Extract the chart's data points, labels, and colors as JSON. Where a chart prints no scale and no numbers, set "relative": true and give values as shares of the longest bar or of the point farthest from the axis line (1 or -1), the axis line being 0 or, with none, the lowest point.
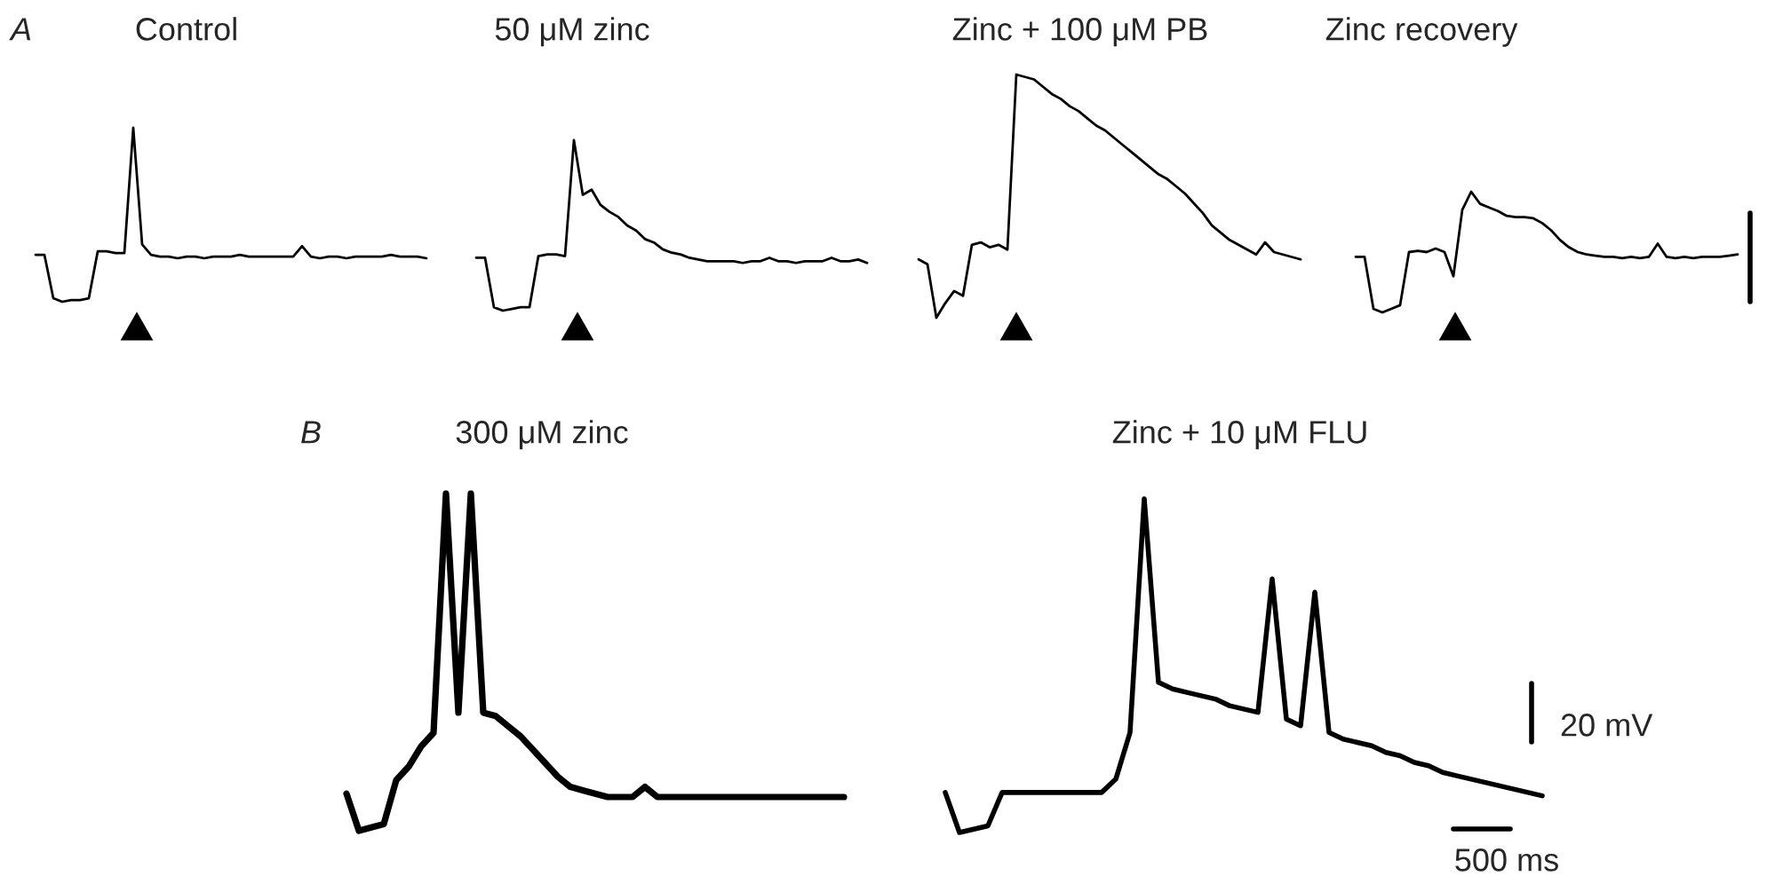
{
  "chart_data": [
    {
      "type": "line",
      "title": "Control",
      "relative": true,
      "color": "#000000",
      "annotations": [
        "A"
      ],
      "categories": [
        null,
        null,
        null,
        null,
        null,
        null,
        null,
        null,
        null,
        null,
        null,
        null,
        null,
        null,
        null,
        null,
        null,
        null,
        null,
        null,
        null,
        null,
        null,
        null,
        null,
        null,
        null,
        null,
        null,
        null,
        null,
        null,
        null,
        null,
        null,
        null,
        null,
        null,
        null,
        null,
        null,
        null,
        null,
        null,
        null
      ],
      "values": [
        0.27,
        0.27,
        0.02,
        0.0,
        0.01,
        0.01,
        0.02,
        0.29,
        0.29,
        0.28,
        0.28,
        1.0,
        0.33,
        0.27,
        0.26,
        0.26,
        0.25,
        0.26,
        0.26,
        0.25,
        0.26,
        0.26,
        0.26,
        0.27,
        0.26,
        0.26,
        0.26,
        0.26,
        0.26,
        0.26,
        0.32,
        0.26,
        0.25,
        0.26,
        0.26,
        0.25,
        0.26,
        0.26,
        0.26,
        0.26,
        0.27,
        0.26,
        0.26,
        0.26,
        0.25
      ]
    },
    {
      "type": "line",
      "title": "50 μM zinc",
      "relative": true,
      "color": "#000000",
      "categories": [
        null,
        null,
        null,
        null,
        null,
        null,
        null,
        null,
        null,
        null,
        null,
        null,
        null,
        null,
        null,
        null,
        null,
        null,
        null,
        null,
        null,
        null,
        null,
        null,
        null,
        null,
        null,
        null,
        null,
        null,
        null,
        null,
        null,
        null,
        null,
        null,
        null,
        null,
        null,
        null,
        null,
        null,
        null,
        null,
        null
      ],
      "values": [
        0.31,
        0.31,
        0.02,
        0.0,
        0.01,
        0.02,
        0.02,
        0.32,
        0.33,
        0.33,
        0.32,
        1.0,
        0.68,
        0.71,
        0.62,
        0.58,
        0.55,
        0.5,
        0.47,
        0.42,
        0.4,
        0.36,
        0.34,
        0.33,
        0.31,
        0.3,
        0.29,
        0.29,
        0.29,
        0.29,
        0.28,
        0.29,
        0.29,
        0.31,
        0.29,
        0.29,
        0.28,
        0.29,
        0.29,
        0.29,
        0.31,
        0.29,
        0.29,
        0.3,
        0.28
      ]
    },
    {
      "type": "line",
      "title": "Zinc + 100 μM PB",
      "relative": true,
      "color": "#000000",
      "categories": [
        null,
        null,
        null,
        null,
        null,
        null,
        null,
        null,
        null,
        null,
        null,
        null,
        null,
        null,
        null,
        null,
        null,
        null,
        null,
        null,
        null,
        null,
        null,
        null,
        null,
        null,
        null,
        null,
        null,
        null,
        null,
        null,
        null,
        null,
        null,
        null,
        null,
        null,
        null,
        null,
        null,
        null,
        null,
        null
      ],
      "values": [
        0.24,
        0.22,
        0.0,
        0.06,
        0.11,
        0.09,
        0.3,
        0.31,
        0.29,
        0.3,
        0.28,
        1.0,
        0.99,
        0.98,
        0.95,
        0.92,
        0.9,
        0.87,
        0.85,
        0.82,
        0.79,
        0.77,
        0.74,
        0.71,
        0.68,
        0.65,
        0.62,
        0.59,
        0.57,
        0.54,
        0.51,
        0.47,
        0.43,
        0.38,
        0.35,
        0.32,
        0.3,
        0.28,
        0.26,
        0.31,
        0.27,
        0.26,
        0.25,
        0.24
      ]
    },
    {
      "type": "line",
      "title": "Zinc recovery",
      "relative": true,
      "color": "#000000",
      "categories": [
        null,
        null,
        null,
        null,
        null,
        null,
        null,
        null,
        null,
        null,
        null,
        null,
        null,
        null,
        null,
        null,
        null,
        null,
        null,
        null,
        null,
        null,
        null,
        null,
        null,
        null,
        null,
        null,
        null,
        null,
        null,
        null,
        null,
        null,
        null,
        null,
        null,
        null,
        null,
        null,
        null,
        null,
        null,
        null
      ],
      "values": [
        0.46,
        0.46,
        0.03,
        0.0,
        0.03,
        0.06,
        0.5,
        0.51,
        0.5,
        0.53,
        0.5,
        0.3,
        0.85,
        1.0,
        0.9,
        0.87,
        0.84,
        0.8,
        0.79,
        0.79,
        0.78,
        0.74,
        0.68,
        0.6,
        0.54,
        0.5,
        0.48,
        0.47,
        0.46,
        0.46,
        0.45,
        0.46,
        0.45,
        0.46,
        0.57,
        0.46,
        0.45,
        0.46,
        0.45,
        0.46,
        0.46,
        0.46,
        0.47,
        0.48
      ]
    },
    {
      "type": "line",
      "title": "300 μM zinc",
      "relative": true,
      "color": "#000000",
      "annotations": [
        "B"
      ],
      "categories": [
        null,
        null,
        null,
        null,
        null,
        null,
        null,
        null,
        null,
        null,
        null,
        null,
        null,
        null,
        null,
        null,
        null,
        null,
        null,
        null,
        null,
        null,
        null,
        null,
        null,
        null,
        null,
        null,
        null,
        null,
        null,
        null,
        null,
        null,
        null,
        null,
        null,
        null,
        null,
        null,
        null
      ],
      "values": [
        0.11,
        0.0,
        0.01,
        0.02,
        0.15,
        0.19,
        0.25,
        0.29,
        1.0,
        0.35,
        1.0,
        0.35,
        0.34,
        0.31,
        0.28,
        0.24,
        0.2,
        0.16,
        0.13,
        0.12,
        0.11,
        0.1,
        0.1,
        0.1,
        0.13,
        0.1,
        0.1,
        0.1,
        0.1,
        0.1,
        0.1,
        0.1,
        0.1,
        0.1,
        0.1,
        0.1,
        0.1,
        0.1,
        0.1,
        0.1,
        0.1
      ]
    },
    {
      "type": "line",
      "title": "Zinc + 10 μM FLU",
      "relative": true,
      "color": "#000000",
      "annotations": [
        "20 mV",
        "500 ms"
      ],
      "categories": [
        null,
        null,
        null,
        null,
        null,
        null,
        null,
        null,
        null,
        null,
        null,
        null,
        null,
        null,
        null,
        null,
        null,
        null,
        null,
        null,
        null,
        null,
        null,
        null,
        null,
        null,
        null,
        null,
        null,
        null,
        null,
        null,
        null,
        null,
        null,
        null,
        null,
        null,
        null,
        null,
        null,
        null,
        null
      ],
      "values": [
        0.12,
        0.0,
        0.01,
        0.02,
        0.12,
        0.12,
        0.12,
        0.12,
        0.12,
        0.12,
        0.12,
        0.12,
        0.16,
        0.3,
        1.0,
        0.45,
        0.43,
        0.42,
        0.41,
        0.4,
        0.38,
        0.37,
        0.36,
        0.76,
        0.34,
        0.32,
        0.72,
        0.3,
        0.28,
        0.27,
        0.26,
        0.24,
        0.23,
        0.21,
        0.2,
        0.18,
        0.17,
        0.16,
        0.15,
        0.14,
        0.13,
        0.12,
        0.11
      ]
    }
  ]
}
